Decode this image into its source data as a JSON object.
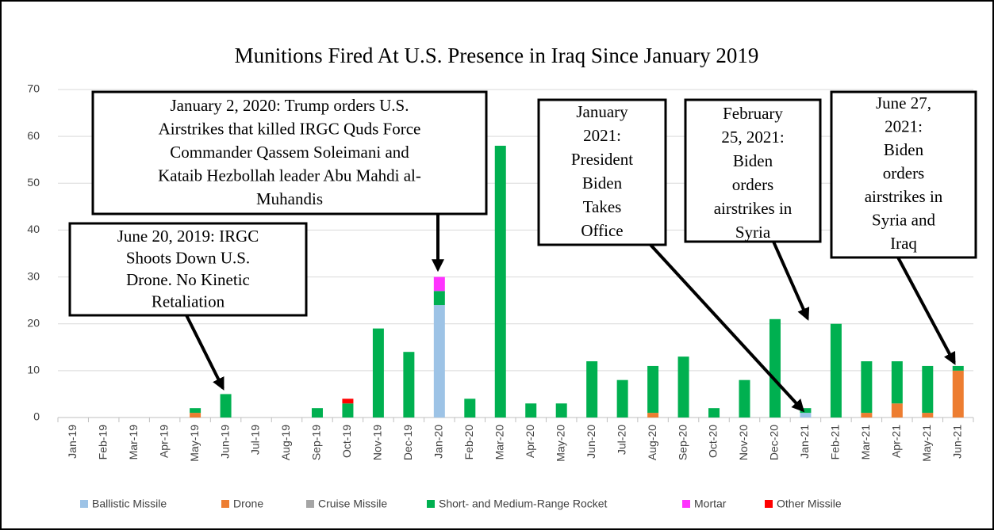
{
  "chart_data": {
    "type": "stacked_bar",
    "title": "Munitions Fired At U.S. Presence in Iraq Since January 2019",
    "categories": [
      "Jan-19",
      "Feb-19",
      "Mar-19",
      "Apr-19",
      "May-19",
      "Jun-19",
      "Jul-19",
      "Aug-19",
      "Sep-19",
      "Oct-19",
      "Nov-19",
      "Dec-19",
      "Jan-20",
      "Feb-20",
      "Mar-20",
      "Apr-20",
      "May-20",
      "Jun-20",
      "Jul-20",
      "Aug-20",
      "Sep-20",
      "Oct-20",
      "Nov-20",
      "Dec-20",
      "Jan-21",
      "Feb-21",
      "Mar-21",
      "Apr-21",
      "May-21",
      "Jun-21"
    ],
    "series": [
      {
        "name": "Ballistic Missile",
        "color": "#9dc3e6",
        "values": [
          0,
          0,
          0,
          0,
          0,
          0,
          0,
          0,
          0,
          0,
          0,
          0,
          24,
          0,
          0,
          0,
          0,
          0,
          0,
          0,
          0,
          0,
          0,
          0,
          1,
          0,
          0,
          0,
          0,
          0
        ]
      },
      {
        "name": "Drone",
        "color": "#ed7d31",
        "values": [
          0,
          0,
          0,
          0,
          1,
          0,
          0,
          0,
          0,
          0,
          0,
          0,
          0,
          0,
          0,
          0,
          0,
          0,
          0,
          1,
          0,
          0,
          0,
          0,
          0,
          0,
          1,
          3,
          1,
          10
        ]
      },
      {
        "name": "Cruise Missile",
        "color": "#a5a5a5",
        "values": [
          0,
          0,
          0,
          0,
          0,
          0,
          0,
          0,
          0,
          0,
          0,
          0,
          0,
          0,
          0,
          0,
          0,
          0,
          0,
          0,
          0,
          0,
          0,
          0,
          0,
          0,
          0,
          0,
          0,
          0
        ]
      },
      {
        "name": "Short- and Medium-Range Rocket",
        "color": "#00b050",
        "values": [
          0,
          0,
          0,
          0,
          1,
          5,
          0,
          0,
          2,
          3,
          19,
          14,
          3,
          4,
          58,
          3,
          3,
          12,
          8,
          10,
          13,
          2,
          8,
          21,
          1,
          20,
          11,
          9,
          10,
          1
        ]
      },
      {
        "name": "Mortar",
        "color": "#ff33ff",
        "values": [
          0,
          0,
          0,
          0,
          0,
          0,
          0,
          0,
          0,
          0,
          0,
          0,
          3,
          0,
          0,
          0,
          0,
          0,
          0,
          0,
          0,
          0,
          0,
          0,
          0,
          0,
          0,
          0,
          0,
          0
        ]
      },
      {
        "name": "Other Missile",
        "color": "#ff0000",
        "values": [
          0,
          0,
          0,
          0,
          0,
          0,
          0,
          0,
          0,
          1,
          0,
          0,
          0,
          0,
          0,
          0,
          0,
          0,
          0,
          0,
          0,
          0,
          0,
          0,
          0,
          0,
          0,
          0,
          0,
          0
        ]
      }
    ],
    "ylim": [
      0,
      70
    ],
    "yticks": [
      0,
      10,
      20,
      30,
      40,
      50,
      60,
      70
    ],
    "grid": true,
    "annotations": [
      {
        "lines": [
          "June 20, 2019: IRGC",
          "Shoots Down U.S.",
          "Drone. No Kinetic",
          "Retaliation"
        ]
      },
      {
        "lines": [
          "January 2, 2020: Trump orders U.S.",
          "Airstrikes that killed IRGC Quds Force",
          "Commander Qassem Soleimani and",
          "Kataib Hezbollah leader Abu Mahdi al-",
          "Muhandis"
        ]
      },
      {
        "lines": [
          "January",
          "2021:",
          "President",
          "Biden",
          "Takes",
          "Office"
        ]
      },
      {
        "lines": [
          "February",
          "25, 2021:",
          "Biden",
          "orders",
          "airstrikes in",
          "Syria"
        ]
      },
      {
        "lines": [
          "June 27,",
          "2021:",
          "Biden",
          "orders",
          "airstrikes in",
          "Syria and",
          "Iraq"
        ]
      }
    ]
  }
}
